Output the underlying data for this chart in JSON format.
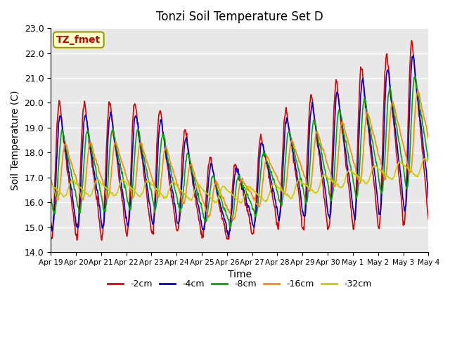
{
  "title": "Tonzi Soil Temperature Set D",
  "xlabel": "Time",
  "ylabel": "Soil Temperature (C)",
  "annotation": "TZ_fmet",
  "annotation_color": "#cc0000",
  "annotation_bg": "#ffffcc",
  "annotation_border": "#999900",
  "ylim": [
    14.0,
    23.0
  ],
  "yticks": [
    14.0,
    15.0,
    16.0,
    17.0,
    18.0,
    19.0,
    20.0,
    21.0,
    22.0,
    23.0
  ],
  "xtick_labels": [
    "Apr 19",
    "Apr 20",
    "Apr 21",
    "Apr 22",
    "Apr 23",
    "Apr 24",
    "Apr 25",
    "Apr 26",
    "Apr 27",
    "Apr 28",
    "Apr 29",
    "Apr 30",
    "May 1",
    "May 2",
    "May 3",
    "May 4"
  ],
  "series_labels": [
    "-2cm",
    "-4cm",
    "-8cm",
    "-16cm",
    "-32cm"
  ],
  "series_colors": [
    "#dd0000",
    "#0000cc",
    "#00aa00",
    "#ff8800",
    "#cccc00"
  ],
  "plot_bg_color": "#e8e8e8",
  "line_width": 1.2,
  "n_days": 15,
  "n_per_day": 48
}
